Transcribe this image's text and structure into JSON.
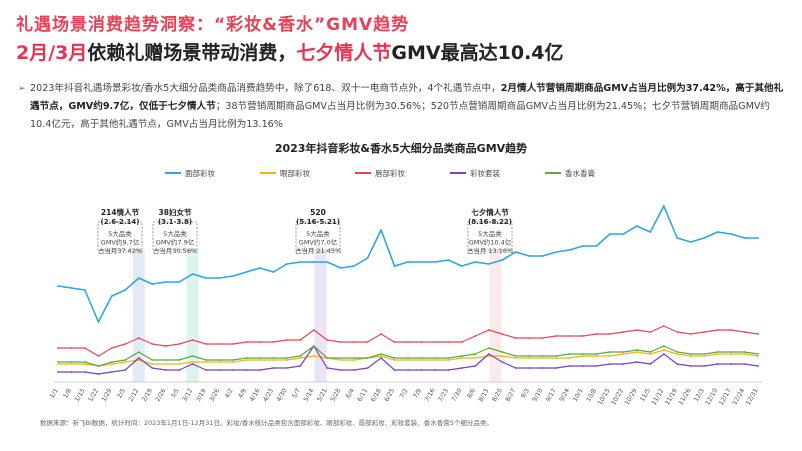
{
  "header": {
    "title": "礼遇场景消费趋势洞察：“彩妆&香水”GMV趋势",
    "subtitle_part1": "2月/3月",
    "subtitle_part2": "依赖礼赠场景带动消费，",
    "subtitle_part3": "七夕情人节",
    "subtitle_part4": "GMV最高达10.4亿"
  },
  "summary": {
    "bullet": "➢",
    "text1": "2023年抖音礼遇场景彩妆/香水5大细分品类商品消费趋势中，除了618、双十一电商节点外，4个礼遇节点中，",
    "bold1": "2月情人节营销周期商品GMV占当月比例为37.42%，高于其他礼遇节点，GMV约9.7亿，仅低于七夕情人节",
    "text2": "；38节营销周期商品GMV占当月比例为30.56%；520节点营销周期商品GMV占当月比例为21.45%；七夕节营销周期商品GMV约10.4亿元，高于其他礼遇节点，GMV占当月比例为13.16%"
  },
  "chart_data": {
    "type": "line",
    "title": "2023年抖音彩妆&香水5大细分品类商品GMV趋势",
    "x": [
      "1/1",
      "1/8",
      "1/15",
      "1/22",
      "1/29",
      "2/5",
      "2/12",
      "2/19",
      "2/26",
      "3/5",
      "3/12",
      "3/19",
      "3/26",
      "4/2",
      "4/9",
      "4/16",
      "4/23",
      "4/30",
      "5/7",
      "5/14",
      "5/21",
      "5/28",
      "6/4",
      "6/11",
      "6/18",
      "6/25",
      "7/2",
      "7/9",
      "7/16",
      "7/23",
      "7/30",
      "8/6",
      "8/13",
      "8/20",
      "8/27",
      "9/3",
      "9/10",
      "9/17",
      "9/24",
      "10/1",
      "10/8",
      "10/15",
      "10/22",
      "10/29",
      "11/5",
      "11/12",
      "11/19",
      "11/26",
      "12/3",
      "12/10",
      "12/17",
      "12/24",
      "12/31"
    ],
    "series": [
      {
        "name": "面部彩妆",
        "color": "#2ba7e0",
        "values": [
          48,
          47,
          46,
          30,
          43,
          46,
          52,
          49,
          50,
          50,
          54,
          52,
          52,
          53,
          55,
          57,
          55,
          59,
          60,
          60,
          60,
          57,
          58,
          62,
          76,
          58,
          60,
          60,
          60,
          61,
          58,
          60,
          59,
          61,
          65,
          63,
          63,
          65,
          66,
          68,
          68,
          74,
          74,
          78,
          75,
          88,
          72,
          70,
          72,
          75,
          74,
          72,
          72
        ]
      },
      {
        "name": "眼部彩妆",
        "color": "#f5b30f",
        "values": [
          9,
          9,
          9,
          8,
          9,
          10,
          11,
          9,
          9,
          9,
          10,
          10,
          10,
          10,
          11,
          11,
          11,
          11,
          12,
          13,
          12,
          11,
          11,
          12,
          13,
          11,
          11,
          11,
          11,
          11,
          12,
          12,
          13,
          13,
          12,
          12,
          12,
          12,
          12,
          13,
          13,
          13,
          14,
          15,
          14,
          16,
          14,
          13,
          13,
          14,
          14,
          14,
          13
        ]
      },
      {
        "name": "唇部彩妆",
        "color": "#e84655",
        "values": [
          17,
          17,
          17,
          13,
          17,
          19,
          22,
          19,
          18,
          19,
          21,
          19,
          19,
          19,
          20,
          20,
          20,
          21,
          21,
          26,
          21,
          20,
          20,
          20,
          24,
          20,
          20,
          20,
          20,
          20,
          20,
          23,
          26,
          24,
          22,
          22,
          22,
          23,
          23,
          23,
          24,
          24,
          25,
          26,
          25,
          28,
          25,
          24,
          25,
          26,
          26,
          25,
          24
        ]
      },
      {
        "name": "彩妆套装",
        "color": "#7b3fc0",
        "values": [
          5,
          5,
          5,
          4,
          5,
          6,
          12,
          7,
          6,
          6,
          9,
          6,
          6,
          6,
          6,
          6,
          7,
          7,
          8,
          18,
          7,
          6,
          6,
          7,
          12,
          6,
          6,
          6,
          6,
          6,
          7,
          8,
          14,
          10,
          7,
          7,
          7,
          7,
          8,
          8,
          8,
          9,
          9,
          10,
          9,
          14,
          9,
          8,
          8,
          9,
          9,
          9,
          8
        ]
      },
      {
        "name": "香水香膏",
        "color": "#5aaa3c",
        "values": [
          10,
          10,
          10,
          8,
          10,
          11,
          15,
          11,
          11,
          11,
          13,
          11,
          11,
          11,
          12,
          12,
          12,
          12,
          13,
          18,
          12,
          12,
          12,
          12,
          14,
          12,
          12,
          12,
          12,
          12,
          13,
          14,
          17,
          15,
          13,
          13,
          13,
          13,
          14,
          14,
          14,
          15,
          15,
          16,
          15,
          18,
          15,
          14,
          14,
          15,
          15,
          15,
          14
        ]
      }
    ],
    "annotations": [
      {
        "label": "214情人节",
        "range": "(2.6-2.14)",
        "lines": [
          "5大品类",
          "GMV约9.7亿",
          "占当月37.42%"
        ],
        "color": "#4d7cc9"
      },
      {
        "label": "38妇女节",
        "range": "(3.1-3.8)",
        "lines": [
          "5大品类",
          "GMV约7.9亿",
          "占当月30.56%"
        ],
        "color": "#3dc09c"
      },
      {
        "label": "520",
        "range": "(5.16-5.21)",
        "lines": [
          "5大品类",
          "GMV约7.0亿",
          "占当月 21.45%"
        ],
        "color": "#7b5fc4"
      },
      {
        "label": "七夕情人节",
        "range": "(8.16-8.22)",
        "lines": [
          "5大品类",
          "GMV约10.4亿",
          "占当月 13.16%"
        ],
        "color": "#e0607a"
      }
    ],
    "grid": false,
    "legend": "top"
  },
  "footnote": "数据来源：祈飞BI数据，统计时间：2023年1月1日-12月31日。彩妆/香水统计品类包含面部彩妆、眼部彩妆、唇部彩妆、彩妆套装、香水香膏5个细分品类。"
}
